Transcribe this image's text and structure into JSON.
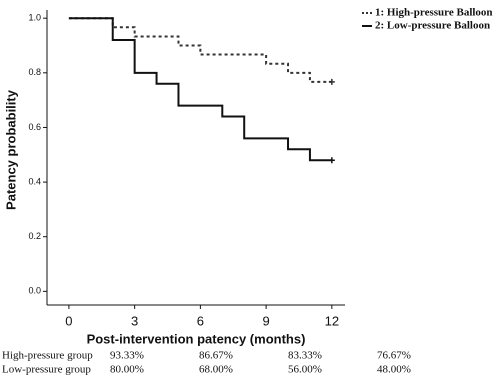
{
  "chart_data": {
    "type": "step",
    "x_label": "Post-intervention patency (months)",
    "y_label": "Patency probability",
    "xlim": [
      -1,
      12.6
    ],
    "ylim": [
      -0.05,
      1.03
    ],
    "xticks": [
      0,
      3,
      6,
      9,
      12
    ],
    "yticks": [
      {
        "value": 0,
        "label": "0.0"
      },
      {
        "value": 0.2,
        "label": "0.2"
      },
      {
        "value": 0.4,
        "label": "0.4"
      },
      {
        "value": 0.6,
        "label": "0.6"
      },
      {
        "value": 0.8,
        "label": "0.8"
      },
      {
        "value": 1,
        "label": "1.0"
      }
    ],
    "series": [
      {
        "name": "1: High-pressure Balloon",
        "color": "#333333",
        "dashed": true,
        "x": [
          0,
          2,
          3,
          5,
          6,
          9,
          10,
          11,
          12
        ],
        "values": [
          1,
          0.967,
          0.933,
          0.9,
          0.867,
          0.833,
          0.8,
          0.767,
          0.767
        ]
      },
      {
        "name": "2: Low-pressure Balloon",
        "color": "#111111",
        "dashed": false,
        "x": [
          0,
          2,
          3,
          4,
          5,
          7,
          8,
          10,
          11,
          12
        ],
        "values": [
          1,
          0.92,
          0.8,
          0.76,
          0.68,
          0.64,
          0.56,
          0.52,
          0.48,
          0.48
        ]
      }
    ]
  },
  "table": {
    "rows": [
      [
        "High-pressure group",
        "93.33%",
        "86.67%",
        "83.33%",
        "76.67%"
      ],
      [
        "Low-pressure group",
        "80.00%",
        "68.00%",
        "56.00%",
        "48.00%"
      ]
    ]
  }
}
